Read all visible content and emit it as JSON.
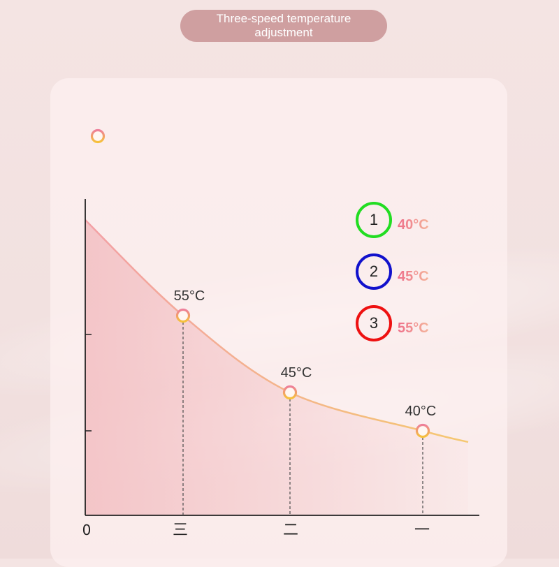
{
  "header": {
    "title": "Three-speed temperature adjustment"
  },
  "colors": {
    "curve_start": "#f3a0a6",
    "curve_end": "#f5c870",
    "fill": "#f1b8bc",
    "ring": "#ee7f9a",
    "ring_inner": "#f6c23a"
  },
  "chart_data": {
    "type": "line",
    "categories": [
      "0",
      "三",
      "二",
      "一"
    ],
    "points": [
      {
        "x": "三",
        "y": 55,
        "label": "55°C"
      },
      {
        "x": "二",
        "y": 45,
        "label": "45°C"
      },
      {
        "x": "一",
        "y": 40,
        "label": "40°C"
      }
    ]
  },
  "legend": [
    {
      "number": "1",
      "temp": "40°C",
      "color": "#22dd22"
    },
    {
      "number": "2",
      "temp": "45°C",
      "color": "#1111cc"
    },
    {
      "number": "3",
      "temp": "55°C",
      "color": "#ee1111"
    }
  ]
}
